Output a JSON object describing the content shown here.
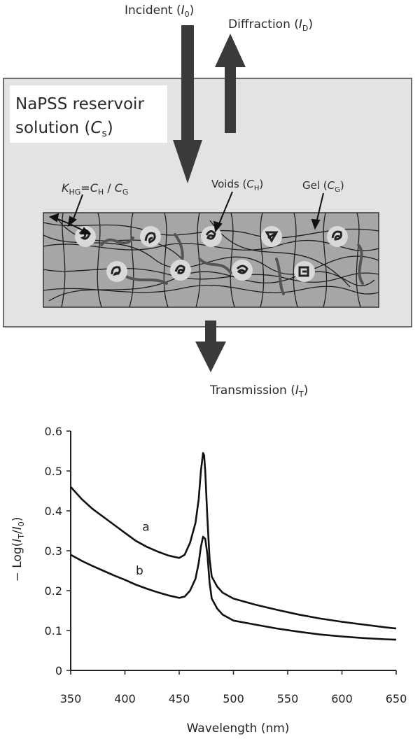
{
  "diagram": {
    "incident_label": "Incident (",
    "incident_sym": "I",
    "incident_sub": "0",
    "incident_close": ")",
    "diffraction_label": "Diffraction (",
    "diffraction_sym": "I",
    "diffraction_sub": "D",
    "diffraction_close": ")",
    "reservoir_line1": "NaPSS  reservoir",
    "reservoir_line2": "solution (",
    "reservoir_sym": "C",
    "reservoir_sub": "s",
    "reservoir_close": ")",
    "khg_k": "K",
    "khg_k_sub": "HG",
    "khg_rest": "=",
    "khg_ch": "C",
    "khg_ch_sub": "H",
    "khg_slash": " / ",
    "khg_cg": "C",
    "khg_cg_sub": "G",
    "voids_label": "Voids (",
    "voids_sym": "C",
    "voids_sub": "H",
    "voids_close": ")",
    "gel_label": "Gel (",
    "gel_sym": "C",
    "gel_sub": "G",
    "gel_close": ")",
    "transmission_label": "Transmission (",
    "transmission_sym": "I",
    "transmission_sub": "T",
    "transmission_close": ")",
    "colors": {
      "box_fill": "#e3e3e3",
      "gel_fill": "#a6a6a6",
      "arrow": "#3a3a3a",
      "void": "#d9d9d9"
    }
  },
  "chart_data": {
    "type": "line",
    "title": "",
    "xlabel": "Wavelength (nm)",
    "ylabel": "− Log(I_T/I_0)",
    "xlim": [
      350,
      650
    ],
    "ylim": [
      0,
      0.6
    ],
    "xticks": [
      350,
      400,
      450,
      500,
      550,
      600,
      650
    ],
    "yticks": [
      0,
      0.1,
      0.2,
      0.3,
      0.4,
      0.5,
      0.6
    ],
    "grid": false,
    "series": [
      {
        "name": "a",
        "x": [
          350,
          360,
          370,
          380,
          390,
          400,
          410,
          420,
          430,
          440,
          450,
          455,
          460,
          465,
          468,
          470,
          472,
          473,
          474,
          476,
          478,
          480,
          485,
          490,
          500,
          520,
          540,
          560,
          580,
          600,
          620,
          640,
          650
        ],
        "y": [
          0.46,
          0.43,
          0.405,
          0.385,
          0.365,
          0.345,
          0.325,
          0.31,
          0.298,
          0.288,
          0.282,
          0.29,
          0.32,
          0.37,
          0.43,
          0.5,
          0.545,
          0.54,
          0.5,
          0.38,
          0.28,
          0.235,
          0.21,
          0.195,
          0.18,
          0.165,
          0.152,
          0.14,
          0.13,
          0.122,
          0.115,
          0.108,
          0.105
        ]
      },
      {
        "name": "b",
        "x": [
          350,
          360,
          370,
          380,
          390,
          400,
          410,
          420,
          430,
          440,
          450,
          455,
          460,
          465,
          468,
          470,
          472,
          474,
          476,
          478,
          480,
          485,
          490,
          500,
          520,
          540,
          560,
          580,
          600,
          620,
          640,
          650
        ],
        "y": [
          0.29,
          0.275,
          0.262,
          0.25,
          0.238,
          0.227,
          0.215,
          0.205,
          0.196,
          0.188,
          0.182,
          0.185,
          0.2,
          0.23,
          0.27,
          0.31,
          0.335,
          0.33,
          0.29,
          0.22,
          0.18,
          0.155,
          0.14,
          0.125,
          0.115,
          0.105,
          0.097,
          0.09,
          0.085,
          0.081,
          0.078,
          0.077
        ]
      }
    ],
    "series_labels": [
      {
        "text": "a",
        "x": 416,
        "y": 0.35
      },
      {
        "text": "b",
        "x": 410,
        "y": 0.24
      }
    ]
  }
}
